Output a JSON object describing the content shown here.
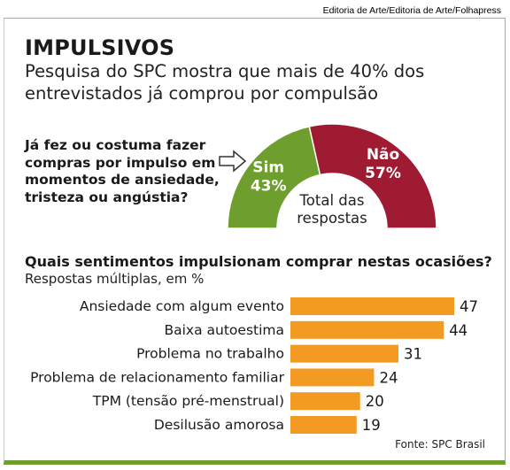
{
  "credit": "Editoria de Arte/Editoria de Arte/Folhapress",
  "title": "IMPULSIVOS",
  "subtitle": "Pesquisa do SPC mostra que mais de 40% dos entrevistados já comprou por compulsão",
  "question": "Já fez ou costuma fazer compras por impulso em momentos de ansiedade, tristeza ou angústia?",
  "icons": {
    "arrow": "right-arrow-outline-icon"
  },
  "colors": {
    "sim": "#6e9e2e",
    "nao": "#9e1b32",
    "bar": "#f39a22",
    "frame_bottom": "#6e9e2e"
  },
  "chart_data": [
    {
      "type": "pie",
      "style": "half-donut",
      "center_label": [
        "Total das",
        "respostas"
      ],
      "slices": [
        {
          "label": "Sim",
          "value_label": "43%",
          "value": 43,
          "color": "#6e9e2e"
        },
        {
          "label": "Não",
          "value_label": "57%",
          "value": 57,
          "color": "#9e1b32"
        }
      ]
    },
    {
      "type": "bar",
      "orientation": "horizontal",
      "title": "Quais sentimentos impulsionam comprar nestas ocasiões?",
      "subtitle": "Respostas múltiplas, em %",
      "categories": [
        "Ansiedade com algum evento",
        "Baixa autoestima",
        "Problema no trabalho",
        "Problema de relacionamento familiar",
        "TPM (tensão pré-menstrual)",
        "Desilusão amorosa"
      ],
      "values": [
        47,
        44,
        31,
        24,
        20,
        19
      ],
      "value_labels": [
        "47",
        "44",
        "31",
        "24",
        "20",
        "19"
      ],
      "color": "#f39a22"
    }
  ],
  "source": "Fonte: SPC Brasil"
}
